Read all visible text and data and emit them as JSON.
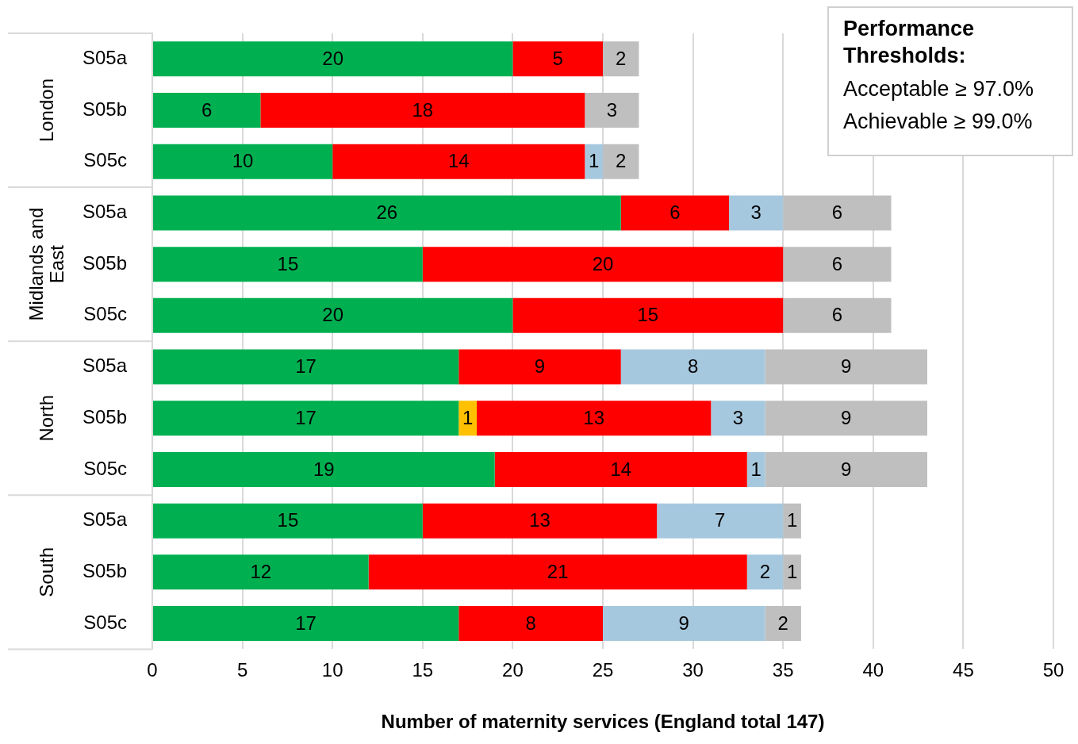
{
  "chart_data": {
    "type": "bar",
    "orientation": "horizontal",
    "stacked": true,
    "xlabel": "Number of maternity services (England total 147)",
    "categories": [
      "S05a",
      "S05b",
      "S05c",
      "S05a",
      "S05b",
      "S05c",
      "S05a",
      "S05b",
      "S05c",
      "S05a",
      "S05b",
      "S05c"
    ],
    "series": [
      {
        "color": "#00b050",
        "values": [
          20,
          6,
          10,
          26,
          15,
          20,
          17,
          17,
          19,
          15,
          12,
          17
        ]
      },
      {
        "color": "#ffc000",
        "values": [
          null,
          null,
          null,
          null,
          null,
          null,
          null,
          1,
          null,
          null,
          null,
          null
        ]
      },
      {
        "color": "#ff0000",
        "values": [
          5,
          18,
          14,
          6,
          20,
          15,
          9,
          13,
          14,
          13,
          21,
          8
        ]
      },
      {
        "color": "#a6c8de",
        "values": [
          null,
          null,
          1,
          3,
          null,
          null,
          8,
          3,
          1,
          7,
          2,
          9
        ]
      },
      {
        "color": "#bfbfbf",
        "values": [
          2,
          3,
          2,
          6,
          6,
          6,
          9,
          9,
          9,
          1,
          1,
          2
        ]
      }
    ],
    "xlim": [
      0,
      50
    ],
    "xticks": [
      0,
      5,
      10,
      15,
      20,
      25,
      30,
      35,
      40,
      45,
      50
    ],
    "grid": "x",
    "data_labels": true,
    "legend": false,
    "annotations": [
      "London",
      "Midlands and East",
      "North",
      "South",
      "Performance Thresholds:",
      "Acceptable ≥ 97.0%",
      "Achievable ≥ 99.0%"
    ]
  }
}
